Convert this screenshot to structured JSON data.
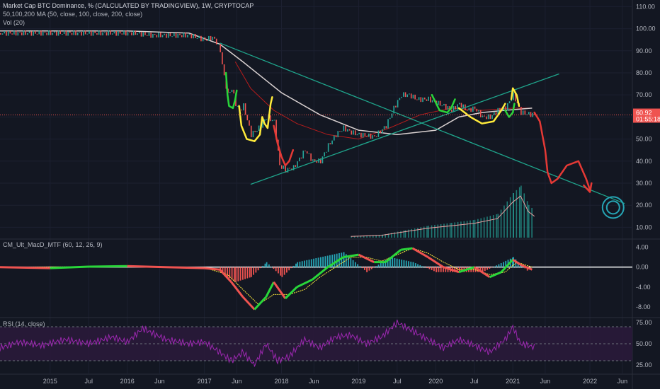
{
  "header": {
    "title": "Market Cap BTC Dominance, % (CALCULATED BY TRADINGVIEW), 1W, CRYPTOCAP",
    "ma_label": "50,100,200 MA (50, close, 100, close, 200, close)",
    "vol_label": "Vol (20)"
  },
  "macd": {
    "label": "CM_Ult_MacD_MTF (60, 12, 26, 9)"
  },
  "rsi": {
    "label": "RSI (14, close)"
  },
  "price_tag": {
    "value": "60.92",
    "countdown": "01:55:18"
  },
  "colors": {
    "background": "#131722",
    "up": "#26a69a",
    "down": "#ef5350",
    "ma_red": "#b71c1c",
    "ma_white": "#d8d0d0",
    "trendline": "#1fa58c",
    "annot_red": "#e53935",
    "annot_green": "#29d63a",
    "annot_yellow": "#ffeb3b",
    "annot_cyan": "#26a5b5",
    "rsi_line": "#9c27b0",
    "rsi_band": "#2a1a3a"
  },
  "chart_data": [
    {
      "type": "line",
      "name": "price",
      "title": "Market Cap BTC Dominance, % (CALCULATED BY TRADINGVIEW), 1W, CRYPTOCAP",
      "ylim": [
        5,
        113
      ],
      "y_ticks": [
        110,
        100,
        90,
        80,
        70,
        60,
        50,
        40,
        30,
        20,
        10
      ],
      "y_tick_labels": [
        "110.00",
        "100.00",
        "90.00",
        "80.00",
        "70.00",
        "60.00",
        "50.00",
        "40.00",
        "30.00",
        "20.00",
        "10.00"
      ],
      "x_tick_labels": [
        "2015",
        "Jul",
        "2016",
        "Jun",
        "2017",
        "Jun",
        "2018",
        "Jun",
        "2019",
        "Jul",
        "2020",
        "Jul",
        "2021",
        "Jun",
        "2022",
        "Jun"
      ],
      "x_ticks": [
        2015.0,
        2015.5,
        2016.0,
        2016.42,
        2017.0,
        2017.42,
        2018.0,
        2018.42,
        2019.0,
        2019.5,
        2020.0,
        2020.5,
        2021.0,
        2021.42,
        2022.0,
        2022.42
      ],
      "close": [
        [
          2014.35,
          98
        ],
        [
          2014.6,
          98
        ],
        [
          2014.9,
          98
        ],
        [
          2015.2,
          98
        ],
        [
          2015.6,
          98
        ],
        [
          2015.9,
          98
        ],
        [
          2016.1,
          98
        ],
        [
          2016.3,
          97
        ],
        [
          2016.5,
          97
        ],
        [
          2016.8,
          97
        ],
        [
          2017.0,
          95
        ],
        [
          2017.1,
          96
        ],
        [
          2017.15,
          94
        ],
        [
          2017.2,
          90
        ],
        [
          2017.25,
          78
        ],
        [
          2017.3,
          70
        ],
        [
          2017.35,
          73
        ],
        [
          2017.4,
          66
        ],
        [
          2017.45,
          63
        ],
        [
          2017.5,
          65
        ],
        [
          2017.6,
          52
        ],
        [
          2017.7,
          55
        ],
        [
          2017.8,
          60
        ],
        [
          2017.9,
          58
        ],
        [
          2017.97,
          38
        ],
        [
          2018.05,
          36
        ],
        [
          2018.15,
          37
        ],
        [
          2018.3,
          45
        ],
        [
          2018.4,
          40
        ],
        [
          2018.5,
          40
        ],
        [
          2018.6,
          47
        ],
        [
          2018.7,
          52
        ],
        [
          2018.8,
          55
        ],
        [
          2018.9,
          53
        ],
        [
          2019.0,
          52
        ],
        [
          2019.2,
          51
        ],
        [
          2019.35,
          56
        ],
        [
          2019.45,
          64
        ],
        [
          2019.55,
          70
        ],
        [
          2019.65,
          70
        ],
        [
          2019.75,
          68
        ],
        [
          2019.9,
          68
        ],
        [
          2020.1,
          65
        ],
        [
          2020.2,
          63
        ],
        [
          2020.3,
          66
        ],
        [
          2020.4,
          63
        ],
        [
          2020.5,
          64
        ],
        [
          2020.6,
          60
        ],
        [
          2020.7,
          60
        ],
        [
          2020.8,
          63
        ],
        [
          2020.9,
          64
        ],
        [
          2021.0,
          70
        ],
        [
          2021.05,
          66
        ],
        [
          2021.1,
          62
        ],
        [
          2021.2,
          61.3
        ],
        [
          2021.28,
          60.92
        ]
      ],
      "ma_red": [
        [
          2017.4,
          85
        ],
        [
          2017.6,
          73
        ],
        [
          2017.9,
          63
        ],
        [
          2018.2,
          57
        ],
        [
          2018.6,
          52
        ],
        [
          2019.0,
          50
        ],
        [
          2019.4,
          55
        ],
        [
          2019.8,
          61
        ],
        [
          2020.2,
          64
        ],
        [
          2020.6,
          63
        ],
        [
          2021.0,
          64
        ],
        [
          2021.25,
          64
        ]
      ],
      "ma_white": [
        [
          2014.35,
          99
        ],
        [
          2016.0,
          99
        ],
        [
          2016.8,
          98
        ],
        [
          2017.2,
          93
        ],
        [
          2017.5,
          85
        ],
        [
          2018.0,
          71
        ],
        [
          2018.5,
          61
        ],
        [
          2019.0,
          54
        ],
        [
          2019.5,
          52
        ],
        [
          2020.0,
          54
        ],
        [
          2020.3,
          60
        ],
        [
          2020.6,
          62
        ],
        [
          2020.9,
          63
        ],
        [
          2021.25,
          64
        ]
      ],
      "trendlines": [
        [
          [
            2017.2,
            93.5
          ],
          [
            2022.45,
            20.8
          ]
        ],
        [
          [
            2017.6,
            29.5
          ],
          [
            2021.6,
            79.5
          ]
        ]
      ],
      "volume": [
        [
          2018.9,
          1
        ],
        [
          2019.3,
          2
        ],
        [
          2019.6,
          5
        ],
        [
          2019.9,
          8
        ],
        [
          2020.2,
          10
        ],
        [
          2020.5,
          12
        ],
        [
          2020.8,
          16
        ],
        [
          2021.0,
          30
        ],
        [
          2021.1,
          35
        ],
        [
          2021.2,
          22
        ],
        [
          2021.28,
          18
        ]
      ],
      "last_value": 60.92
    },
    {
      "type": "bar",
      "name": "macd",
      "title": "CM_Ult_MacD_MTF (60, 12, 26, 9)",
      "ylim": [
        -10,
        5.5
      ],
      "y_ticks": [
        4,
        0,
        -4,
        -8
      ],
      "y_tick_labels": [
        "4.00",
        "0.00",
        "-4.00",
        "-8.00"
      ],
      "macd_line": [
        [
          2014.35,
          0
        ],
        [
          2015.0,
          -0.2
        ],
        [
          2015.5,
          0.1
        ],
        [
          2016.0,
          0.2
        ],
        [
          2016.5,
          0
        ],
        [
          2017.0,
          -0.2
        ],
        [
          2017.2,
          -0.5
        ],
        [
          2017.35,
          -3
        ],
        [
          2017.5,
          -6
        ],
        [
          2017.65,
          -8.5
        ],
        [
          2017.8,
          -6
        ],
        [
          2017.9,
          -3
        ],
        [
          2018.05,
          -6.3
        ],
        [
          2018.2,
          -4
        ],
        [
          2018.4,
          -2.5
        ],
        [
          2018.6,
          0
        ],
        [
          2018.8,
          2
        ],
        [
          2019.0,
          2.5
        ],
        [
          2019.2,
          1
        ],
        [
          2019.35,
          1
        ],
        [
          2019.55,
          3.5
        ],
        [
          2019.7,
          3.8
        ],
        [
          2019.9,
          2
        ],
        [
          2020.1,
          0
        ],
        [
          2020.3,
          -1
        ],
        [
          2020.5,
          0
        ],
        [
          2020.7,
          -2
        ],
        [
          2020.85,
          -1
        ],
        [
          2021.0,
          1.5
        ],
        [
          2021.1,
          0.5
        ],
        [
          2021.25,
          -0.5
        ]
      ],
      "signal_line": [
        [
          2014.35,
          0
        ],
        [
          2016.0,
          0.1
        ],
        [
          2017.0,
          -0.1
        ],
        [
          2017.3,
          -1.5
        ],
        [
          2017.5,
          -4.5
        ],
        [
          2017.7,
          -7.5
        ],
        [
          2017.9,
          -5.5
        ],
        [
          2018.1,
          -5.5
        ],
        [
          2018.3,
          -4.5
        ],
        [
          2018.5,
          -2
        ],
        [
          2018.7,
          0
        ],
        [
          2018.9,
          2
        ],
        [
          2019.1,
          2
        ],
        [
          2019.3,
          1.2
        ],
        [
          2019.5,
          2.5
        ],
        [
          2019.7,
          3.8
        ],
        [
          2019.9,
          2.8
        ],
        [
          2020.1,
          1
        ],
        [
          2020.3,
          -0.5
        ],
        [
          2020.5,
          -0.5
        ],
        [
          2020.7,
          -1.5
        ],
        [
          2020.9,
          -1
        ],
        [
          2021.05,
          1
        ],
        [
          2021.25,
          0
        ]
      ],
      "histogram": [
        [
          2017.2,
          -1
        ],
        [
          2017.4,
          -3
        ],
        [
          2017.6,
          -2
        ],
        [
          2017.8,
          1
        ],
        [
          2018.0,
          -2
        ],
        [
          2018.2,
          1
        ],
        [
          2018.5,
          2
        ],
        [
          2018.8,
          3
        ],
        [
          2019.1,
          -1
        ],
        [
          2019.4,
          2
        ],
        [
          2019.7,
          1
        ],
        [
          2020.0,
          -1
        ],
        [
          2020.3,
          -1
        ],
        [
          2020.6,
          -1
        ],
        [
          2021.0,
          2
        ],
        [
          2021.2,
          -1
        ]
      ]
    },
    {
      "type": "line",
      "name": "rsi",
      "title": "RSI (14, close)",
      "ylim": [
        15,
        80
      ],
      "y_ticks": [
        75,
        50,
        25
      ],
      "y_tick_labels": [
        "75.00",
        "50.00",
        "25.00"
      ],
      "band": [
        30,
        70
      ],
      "values": [
        [
          2014.35,
          45
        ],
        [
          2014.6,
          52
        ],
        [
          2014.9,
          48
        ],
        [
          2015.2,
          55
        ],
        [
          2015.5,
          50
        ],
        [
          2015.8,
          58
        ],
        [
          2016.0,
          52
        ],
        [
          2016.2,
          68
        ],
        [
          2016.5,
          55
        ],
        [
          2016.8,
          50
        ],
        [
          2017.0,
          52
        ],
        [
          2017.2,
          40
        ],
        [
          2017.35,
          30
        ],
        [
          2017.5,
          40
        ],
        [
          2017.65,
          25
        ],
        [
          2017.8,
          50
        ],
        [
          2017.95,
          30
        ],
        [
          2018.1,
          35
        ],
        [
          2018.3,
          55
        ],
        [
          2018.5,
          45
        ],
        [
          2018.7,
          58
        ],
        [
          2018.9,
          60
        ],
        [
          2019.1,
          50
        ],
        [
          2019.3,
          58
        ],
        [
          2019.5,
          75
        ],
        [
          2019.7,
          65
        ],
        [
          2019.9,
          55
        ],
        [
          2020.1,
          45
        ],
        [
          2020.3,
          55
        ],
        [
          2020.5,
          48
        ],
        [
          2020.7,
          40
        ],
        [
          2020.9,
          55
        ],
        [
          2021.0,
          70
        ],
        [
          2021.1,
          50
        ],
        [
          2021.28,
          46
        ]
      ]
    }
  ]
}
